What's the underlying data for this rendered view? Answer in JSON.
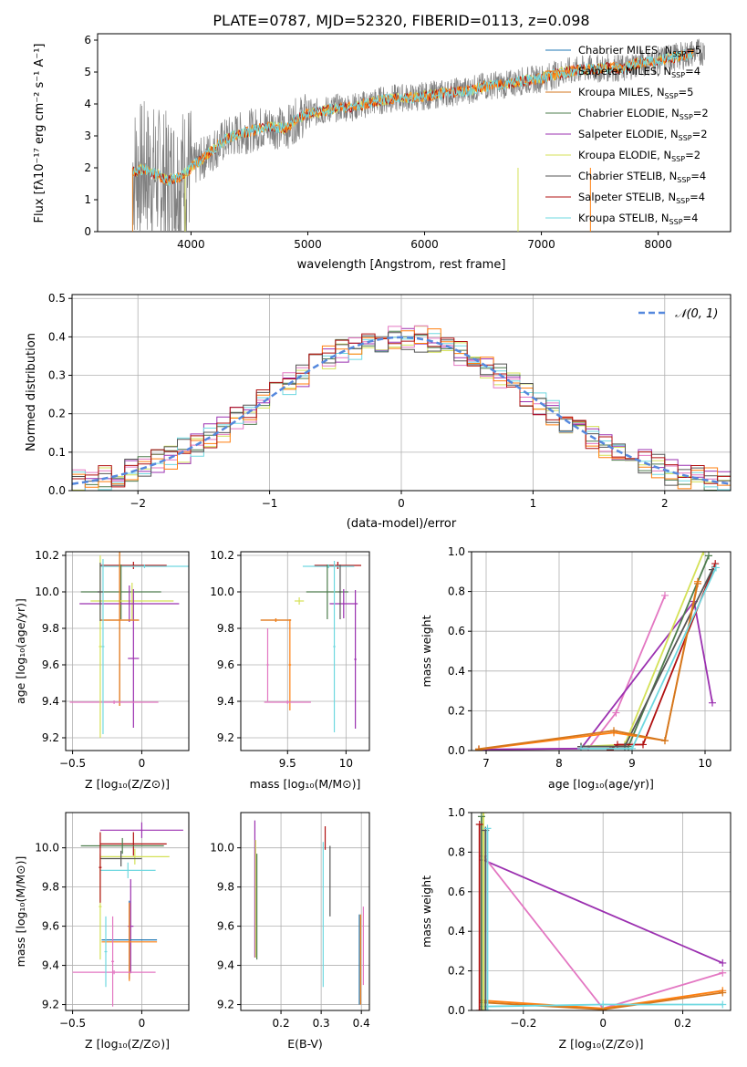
{
  "figure": {
    "title": "PLATE=0787, MJD=52320, FIBERID=0113, z=0.098"
  },
  "colors": {
    "chabrier_miles": "#1f77b4",
    "salpeter_miles": "#ff7f0e",
    "kroupa_miles": "#d3761c",
    "chabrier_elodie": "#4d7c4d",
    "salpeter_elodie": "#9b30b0",
    "kroupa_elodie": "#d4e157",
    "chabrier_stelib": "#555555",
    "salpeter_stelib": "#b01010",
    "kroupa_stelib": "#6fd8e0",
    "pink": "#e377c2",
    "data_gray": "#808080",
    "gaussian": "#5588dd",
    "grid": "#b0b0b0"
  },
  "chart_data": [
    {
      "id": "spectrum",
      "type": "line",
      "title": "PLATE=0787, MJD=52320, FIBERID=0113, z=0.098",
      "xlabel": "wavelength [Angstrom, rest frame]",
      "ylabel": "Flux [fλ10⁻¹⁷ erg cm⁻² s⁻¹ A⁻¹]",
      "xlim": [
        3200,
        8620
      ],
      "ylim": [
        0,
        6.2
      ],
      "xticks": [
        4000,
        5000,
        6000,
        7000,
        8000
      ],
      "yticks": [
        0,
        1,
        2,
        3,
        4,
        5,
        6
      ],
      "grid": false,
      "legend_position": "top-right",
      "legend": [
        {
          "label": "Chabrier MILES, N",
          "sub": "SSP",
          "suffix": "=5",
          "color_key": "chabrier_miles"
        },
        {
          "label": "Salpeter MILES, N",
          "sub": "SSP",
          "suffix": "=4",
          "color_key": "salpeter_miles"
        },
        {
          "label": "Kroupa MILES, N",
          "sub": "SSP",
          "suffix": "=5",
          "color_key": "kroupa_miles"
        },
        {
          "label": "Chabrier ELODIE, N",
          "sub": "SSP",
          "suffix": "=2",
          "color_key": "chabrier_elodie"
        },
        {
          "label": "Salpeter ELODIE, N",
          "sub": "SSP",
          "suffix": "=2",
          "color_key": "salpeter_elodie"
        },
        {
          "label": "Kroupa ELODIE, N",
          "sub": "SSP",
          "suffix": "=2",
          "color_key": "kroupa_elodie"
        },
        {
          "label": "Chabrier STELIB, N",
          "sub": "SSP",
          "suffix": "=4",
          "color_key": "chabrier_stelib"
        },
        {
          "label": "Salpeter STELIB, N",
          "sub": "SSP",
          "suffix": "=4",
          "color_key": "salpeter_stelib"
        },
        {
          "label": "Kroupa STELIB, N",
          "sub": "SSP",
          "suffix": "=4",
          "color_key": "kroupa_stelib"
        }
      ],
      "continuum": {
        "x": [
          3500,
          3600,
          3700,
          3800,
          3900,
          4000,
          4100,
          4200,
          4300,
          4400,
          4500,
          4600,
          4700,
          4800,
          4900,
          5000,
          5100,
          5200,
          5300,
          5400,
          5500,
          5600,
          5700,
          5800,
          5900,
          6000,
          6100,
          6200,
          6300,
          6400,
          6500,
          6600,
          6700,
          6800,
          6900,
          7000,
          7100,
          7200,
          7300,
          7400,
          7500,
          7600,
          7700,
          7800,
          7900,
          8000,
          8100,
          8200,
          8300,
          8400
        ],
        "y": [
          1.9,
          1.95,
          1.8,
          1.6,
          1.7,
          2.0,
          2.3,
          2.6,
          2.9,
          3.05,
          3.15,
          3.25,
          3.3,
          3.2,
          3.5,
          3.7,
          3.75,
          3.85,
          3.9,
          3.9,
          4.0,
          4.1,
          4.15,
          4.2,
          4.2,
          4.25,
          4.3,
          4.35,
          4.4,
          4.45,
          4.55,
          4.6,
          4.6,
          4.7,
          4.75,
          4.8,
          4.9,
          5.0,
          5.05,
          5.1,
          5.1,
          5.15,
          5.1,
          5.25,
          5.3,
          5.35,
          5.45,
          5.5,
          5.6,
          5.65
        ]
      }
    },
    {
      "id": "residuals",
      "type": "histogram",
      "xlabel": "(data-model)/error",
      "ylabel": "Normed distribution",
      "xlim": [
        -2.5,
        2.5
      ],
      "ylim": [
        0,
        0.51
      ],
      "xticks": [
        -2,
        -1,
        0,
        1,
        2
      ],
      "yticks": [
        0.0,
        0.1,
        0.2,
        0.3,
        0.4,
        0.5
      ],
      "grid": true,
      "bin_width": 0.1,
      "legend_position": "top-right",
      "legend": [
        {
          "label": "𝒩(0, 1)",
          "color_key": "gaussian"
        }
      ],
      "gaussian": {
        "mean": 0,
        "sigma": 1
      }
    },
    {
      "id": "age-vs-Z",
      "type": "errorbar",
      "xlabel": "Z [log₁₀(Z/Z⊙)]",
      "ylabel": "age  [log₁₀(age/yr)]",
      "xlim": [
        -0.55,
        0.34
      ],
      "ylim": [
        9.13,
        10.22
      ],
      "xticks": [
        -0.5,
        0.0
      ],
      "yticks": [
        9.2,
        9.4,
        9.6,
        9.8,
        10.0,
        10.2
      ],
      "grid": true,
      "points": [
        {
          "x": -0.06,
          "y": 10.145,
          "xerr": 0.24,
          "yerr": 0.02,
          "color_key": "salpeter_stelib"
        },
        {
          "x": 0.02,
          "y": 10.14,
          "xerr": 0.32,
          "yerr": 0.01,
          "color_key": "kroupa_stelib"
        },
        {
          "x": -0.15,
          "y": 10.0,
          "xerr": 0.29,
          "yerr": 0.15,
          "color_key": "chabrier_elodie"
        },
        {
          "x": -0.07,
          "y": 9.95,
          "xerr": 0.3,
          "yerr": 0.1,
          "color_key": "kroupa_elodie"
        },
        {
          "x": -0.09,
          "y": 9.935,
          "xerr": 0.36,
          "yerr": 0.1,
          "color_key": "salpeter_elodie"
        },
        {
          "x": -0.06,
          "y": 9.635,
          "xerr": 0.04,
          "yerr": 0.38,
          "color_key": "salpeter_elodie"
        },
        {
          "x": -0.16,
          "y": 9.845,
          "xerr": 0.14,
          "yerr": 0.47,
          "color_key": "chabrier_miles"
        },
        {
          "x": -0.16,
          "y": 9.845,
          "xerr": 0.14,
          "yerr": 0.47,
          "color_key": "salpeter_miles"
        },
        {
          "x": -0.2,
          "y": 9.395,
          "xerr": 0.32,
          "yerr": 0.01,
          "color_key": "pink"
        },
        {
          "x": -0.3,
          "y": 9.7,
          "xerr": 0.01,
          "yerr": 0.5,
          "color_key": "kroupa_elodie"
        },
        {
          "x": -0.28,
          "y": 9.7,
          "xerr": 0.01,
          "yerr": 0.48,
          "color_key": "kroupa_stelib"
        },
        {
          "x": -0.3,
          "y": 10.0,
          "xerr": 0.02,
          "yerr": 0.16,
          "color_key": "chabrier_stelib"
        }
      ]
    },
    {
      "id": "age-vs-mass",
      "type": "errorbar",
      "xlabel": "mass [log₁₀(M/M⊙)]",
      "ylabel": "",
      "xlim": [
        9.1,
        10.2
      ],
      "ylim": [
        9.13,
        10.22
      ],
      "xticks": [
        9.5,
        10.0
      ],
      "yticks": [
        9.2,
        9.4,
        9.6,
        9.8,
        10.0,
        10.2
      ],
      "grid": true,
      "points": [
        {
          "x": 9.93,
          "y": 10.145,
          "xerr": 0.2,
          "yerr": 0.02,
          "color_key": "salpeter_stelib"
        },
        {
          "x": 9.85,
          "y": 10.14,
          "xerr": 0.22,
          "yerr": 0.01,
          "color_key": "kroupa_stelib"
        },
        {
          "x": 9.84,
          "y": 10.0,
          "xerr": 0.18,
          "yerr": 0.15,
          "color_key": "chabrier_elodie"
        },
        {
          "x": 9.6,
          "y": 9.95,
          "xerr": 0.04,
          "yerr": 0.02,
          "color_key": "kroupa_elodie"
        },
        {
          "x": 9.98,
          "y": 9.935,
          "xerr": 0.12,
          "yerr": 0.08,
          "color_key": "salpeter_elodie"
        },
        {
          "x": 10.08,
          "y": 9.63,
          "xerr": 0.01,
          "yerr": 0.38,
          "color_key": "salpeter_elodie"
        },
        {
          "x": 9.4,
          "y": 9.845,
          "xerr": 0.13,
          "yerr": 0.01,
          "color_key": "chabrier_miles"
        },
        {
          "x": 9.4,
          "y": 9.845,
          "xerr": 0.13,
          "yerr": 0.01,
          "color_key": "salpeter_miles"
        },
        {
          "x": 9.52,
          "y": 9.6,
          "xerr": 0.01,
          "yerr": 0.25,
          "color_key": "salpeter_miles"
        },
        {
          "x": 9.5,
          "y": 9.395,
          "xerr": 0.2,
          "yerr": 0.01,
          "color_key": "pink"
        },
        {
          "x": 9.33,
          "y": 9.6,
          "xerr": 0.01,
          "yerr": 0.2,
          "color_key": "pink"
        },
        {
          "x": 9.9,
          "y": 9.7,
          "xerr": 0.01,
          "yerr": 0.47,
          "color_key": "kroupa_stelib"
        },
        {
          "x": 9.95,
          "y": 10.0,
          "xerr": 0.01,
          "yerr": 0.15,
          "color_key": "chabrier_stelib"
        }
      ]
    },
    {
      "id": "mass-weight-vs-age",
      "type": "line",
      "xlabel": "age  [log₁₀(age/yr)]",
      "ylabel": "mass weight",
      "xlim": [
        6.8,
        10.35
      ],
      "ylim": [
        0,
        1.0
      ],
      "xticks": [
        7,
        8,
        9,
        10
      ],
      "yticks": [
        0.0,
        0.2,
        0.4,
        0.6,
        0.8,
        1.0
      ],
      "grid": true,
      "series": [
        {
          "color_key": "pink",
          "x": [
            6.9,
            8.4,
            8.78,
            9.45
          ],
          "y": [
            0.005,
            0.01,
            0.19,
            0.78
          ]
        },
        {
          "color_key": "salpeter_elodie",
          "x": [
            6.9,
            8.3,
            9.85,
            10.1
          ],
          "y": [
            0.005,
            0.01,
            0.75,
            0.24
          ]
        },
        {
          "color_key": "kroupa_elodie",
          "x": [
            8.3,
            8.9,
            9.98
          ],
          "y": [
            0.02,
            0.03,
            1.0
          ]
        },
        {
          "color_key": "chabrier_elodie",
          "x": [
            8.3,
            8.95,
            10.05
          ],
          "y": [
            0.02,
            0.02,
            0.98
          ]
        },
        {
          "color_key": "salpeter_stelib",
          "x": [
            8.7,
            8.8,
            9.15,
            10.14
          ],
          "y": [
            0.005,
            0.03,
            0.03,
            0.94
          ]
        },
        {
          "color_key": "chabrier_stelib",
          "x": [
            8.3,
            8.9,
            10.1
          ],
          "y": [
            0.02,
            0.02,
            0.91
          ]
        },
        {
          "color_key": "salpeter_miles",
          "x": [
            6.9,
            8.75,
            9.45,
            9.9
          ],
          "y": [
            0.005,
            0.09,
            0.05,
            0.85
          ]
        },
        {
          "color_key": "kroupa_miles",
          "x": [
            6.9,
            8.75,
            9.45,
            9.9
          ],
          "y": [
            0.008,
            0.1,
            0.05,
            0.84
          ]
        },
        {
          "color_key": "kroupa_stelib",
          "x": [
            8.3,
            9.0,
            10.15
          ],
          "y": [
            0.01,
            0.01,
            0.92
          ]
        }
      ]
    },
    {
      "id": "mass-vs-Z",
      "type": "errorbar",
      "xlabel": "Z [log₁₀(Z/Z⊙)]",
      "ylabel": "mass [log₁₀(M/M⊙)]",
      "xlim": [
        -0.55,
        0.34
      ],
      "ylim": [
        9.17,
        10.18
      ],
      "xticks": [
        -0.5,
        0.0
      ],
      "yticks": [
        9.2,
        9.4,
        9.6,
        9.8,
        10.0
      ],
      "grid": true,
      "points": [
        {
          "x": 0.0,
          "y": 10.09,
          "xerr": 0.3,
          "yerr": 0.04,
          "color_key": "salpeter_elodie"
        },
        {
          "x": -0.06,
          "y": 10.02,
          "xerr": 0.24,
          "yerr": 0.06,
          "color_key": "salpeter_stelib"
        },
        {
          "x": -0.14,
          "y": 10.01,
          "xerr": 0.3,
          "yerr": 0.04,
          "color_key": "chabrier_elodie"
        },
        {
          "x": -0.05,
          "y": 9.955,
          "xerr": 0.25,
          "yerr": 0.04,
          "color_key": "kroupa_elodie"
        },
        {
          "x": -0.15,
          "y": 9.945,
          "xerr": 0.15,
          "yerr": 0.04,
          "color_key": "chabrier_stelib"
        },
        {
          "x": -0.1,
          "y": 9.885,
          "xerr": 0.2,
          "yerr": 0.04,
          "color_key": "kroupa_stelib"
        },
        {
          "x": -0.08,
          "y": 9.6,
          "xerr": 0.02,
          "yerr": 0.24,
          "color_key": "salpeter_elodie"
        },
        {
          "x": -0.09,
          "y": 9.53,
          "xerr": 0.2,
          "yerr": 0.2,
          "color_key": "chabrier_miles"
        },
        {
          "x": -0.09,
          "y": 9.52,
          "xerr": 0.2,
          "yerr": 0.2,
          "color_key": "salpeter_miles"
        },
        {
          "x": -0.2,
          "y": 9.365,
          "xerr": 0.3,
          "yerr": 0.01,
          "color_key": "pink"
        },
        {
          "x": -0.21,
          "y": 9.42,
          "xerr": 0.01,
          "yerr": 0.23,
          "color_key": "pink"
        },
        {
          "x": -0.3,
          "y": 9.7,
          "xerr": 0.01,
          "yerr": 0.27,
          "color_key": "kroupa_elodie"
        },
        {
          "x": -0.26,
          "y": 9.47,
          "xerr": 0.01,
          "yerr": 0.18,
          "color_key": "kroupa_stelib"
        },
        {
          "x": -0.3,
          "y": 9.9,
          "xerr": 0.01,
          "yerr": 0.18,
          "color_key": "salpeter_stelib"
        }
      ]
    },
    {
      "id": "mass-vs-ebv",
      "type": "errorbar",
      "xlabel": "E(B-V)",
      "ylabel": "",
      "xlim": [
        0.1,
        0.42
      ],
      "ylim": [
        9.17,
        10.18
      ],
      "xticks": [
        0.2,
        0.3,
        0.4
      ],
      "yticks": [
        9.2,
        9.4,
        9.6,
        9.8,
        10.0
      ],
      "grid": true,
      "points": [
        {
          "x": 0.135,
          "y": 9.79,
          "xerr": 0,
          "yerr": 0.35,
          "color_key": "salpeter_elodie"
        },
        {
          "x": 0.137,
          "y": 9.74,
          "xerr": 0,
          "yerr": 0.3,
          "color_key": "kroupa_elodie"
        },
        {
          "x": 0.14,
          "y": 9.7,
          "xerr": 0,
          "yerr": 0.27,
          "color_key": "chabrier_elodie"
        },
        {
          "x": 0.305,
          "y": 9.66,
          "xerr": 0,
          "yerr": 0.37,
          "color_key": "kroupa_stelib"
        },
        {
          "x": 0.31,
          "y": 10.05,
          "xerr": 0,
          "yerr": 0.06,
          "color_key": "salpeter_stelib"
        },
        {
          "x": 0.322,
          "y": 9.83,
          "xerr": 0,
          "yerr": 0.18,
          "color_key": "chabrier_stelib"
        },
        {
          "x": 0.395,
          "y": 9.43,
          "xerr": 0,
          "yerr": 0.23,
          "color_key": "chabrier_miles"
        },
        {
          "x": 0.398,
          "y": 9.43,
          "xerr": 0,
          "yerr": 0.23,
          "color_key": "salpeter_miles"
        },
        {
          "x": 0.405,
          "y": 9.5,
          "xerr": 0,
          "yerr": 0.2,
          "color_key": "pink"
        }
      ]
    },
    {
      "id": "mass-weight-vs-Z",
      "type": "line",
      "xlabel": "Z [log₁₀(Z/Z⊙)]",
      "ylabel": "mass weight",
      "xlim": [
        -0.33,
        0.32
      ],
      "ylim": [
        0,
        1.0
      ],
      "xticks": [
        -0.2,
        0.0,
        0.2
      ],
      "yticks": [
        0.0,
        0.2,
        0.4,
        0.6,
        0.8,
        1.0
      ],
      "grid": true,
      "series": [
        {
          "color_key": "salpeter_elodie",
          "x": [
            -0.3,
            0.3
          ],
          "y": [
            0.76,
            0.24
          ]
        },
        {
          "color_key": "pink",
          "x": [
            -0.3,
            0.0,
            0.3
          ],
          "y": [
            0.78,
            0.01,
            0.19
          ]
        },
        {
          "color_key": "salpeter_miles",
          "x": [
            -0.3,
            0.0,
            0.3
          ],
          "y": [
            0.05,
            0.01,
            0.1
          ]
        },
        {
          "color_key": "kroupa_miles",
          "x": [
            -0.3,
            0.0,
            0.3
          ],
          "y": [
            0.04,
            0.005,
            0.09
          ]
        },
        {
          "color_key": "kroupa_stelib",
          "x": [
            -0.3,
            0.0,
            0.3
          ],
          "y": [
            0.02,
            0.03,
            0.03
          ]
        },
        {
          "color_key": "kroupa_elodie",
          "x": [
            -0.3,
            -0.3
          ],
          "y": [
            0.0,
            1.0
          ]
        },
        {
          "color_key": "chabrier_elodie",
          "x": [
            -0.305,
            -0.305
          ],
          "y": [
            0.0,
            0.98
          ]
        },
        {
          "color_key": "salpeter_stelib",
          "x": [
            -0.31,
            -0.31
          ],
          "y": [
            0.0,
            0.94
          ]
        },
        {
          "color_key": "chabrier_stelib",
          "x": [
            -0.295,
            -0.295
          ],
          "y": [
            0.0,
            0.91
          ]
        },
        {
          "color_key": "kroupa_stelib",
          "x": [
            -0.29,
            -0.29
          ],
          "y": [
            0.0,
            0.92
          ]
        }
      ]
    }
  ]
}
